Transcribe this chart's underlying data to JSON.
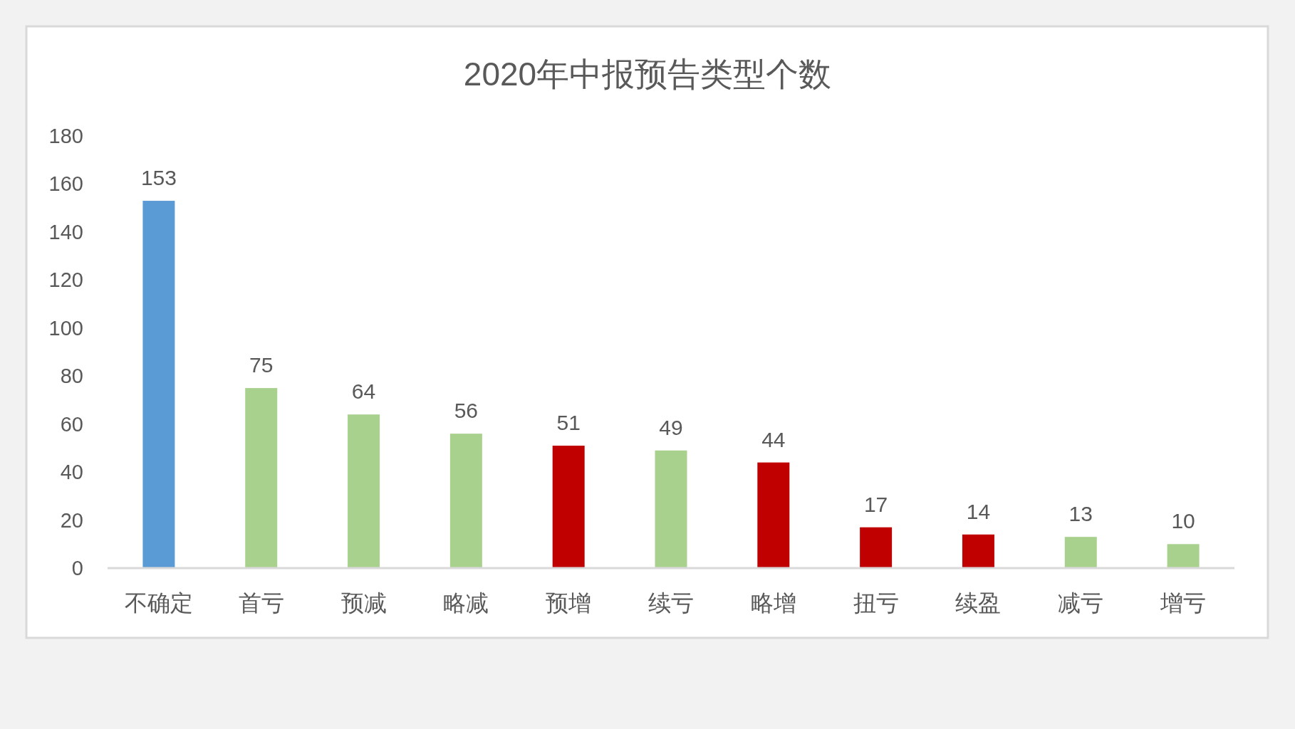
{
  "chart_data": {
    "type": "bar",
    "title": "2020年中报预告类型个数",
    "categories": [
      "不确定",
      "首亏",
      "预减",
      "略减",
      "预增",
      "续亏",
      "略增",
      "扭亏",
      "续盈",
      "减亏",
      "增亏"
    ],
    "values": [
      153,
      75,
      64,
      56,
      51,
      49,
      44,
      17,
      14,
      13,
      10
    ],
    "colors": [
      "#5b9bd5",
      "#a9d18e",
      "#a9d18e",
      "#a9d18e",
      "#c00000",
      "#a9d18e",
      "#c00000",
      "#c00000",
      "#c00000",
      "#a9d18e",
      "#a9d18e"
    ],
    "ylim": [
      0,
      180
    ],
    "yticks": [
      0,
      20,
      40,
      60,
      80,
      100,
      120,
      140,
      160,
      180
    ],
    "data_labels": true
  }
}
